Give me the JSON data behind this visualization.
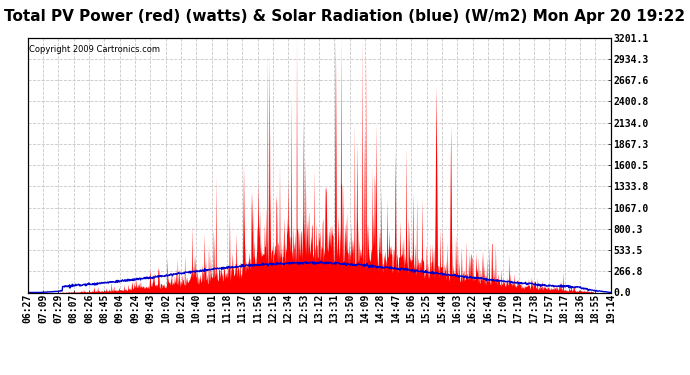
{
  "title": "Total PV Power (red) (watts) & Solar Radiation (blue) (W/m2) Mon Apr 20 19:22",
  "copyright": "Copyright 2009 Cartronics.com",
  "ylabel_right": [
    "3201.1",
    "2934.3",
    "2667.6",
    "2400.8",
    "2134.0",
    "1867.3",
    "1600.5",
    "1333.8",
    "1067.0",
    "800.3",
    "533.5",
    "266.8",
    "0.0"
  ],
  "ymax": 3201.1,
  "ymin": 0.0,
  "background_color": "#ffffff",
  "plot_bg_color": "#ffffff",
  "grid_color": "#c8c8c8",
  "red_color": "#ff0000",
  "blue_color": "#0000cc",
  "title_fontsize": 11,
  "tick_fontsize": 7,
  "x_labels": [
    "06:27",
    "07:09",
    "07:29",
    "08:07",
    "08:26",
    "08:45",
    "09:04",
    "09:24",
    "09:43",
    "10:02",
    "10:21",
    "10:40",
    "11:01",
    "11:18",
    "11:37",
    "11:56",
    "12:15",
    "12:34",
    "12:53",
    "13:12",
    "13:31",
    "13:50",
    "14:09",
    "14:28",
    "14:47",
    "15:06",
    "15:25",
    "15:44",
    "16:03",
    "16:22",
    "16:41",
    "17:00",
    "17:19",
    "17:38",
    "17:57",
    "18:17",
    "18:36",
    "18:55",
    "19:14"
  ]
}
